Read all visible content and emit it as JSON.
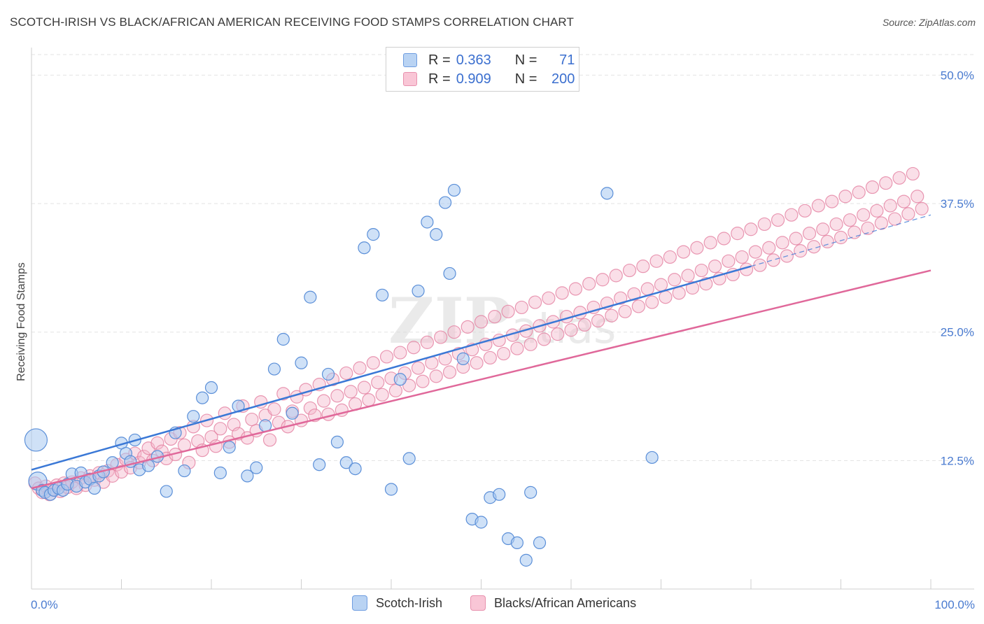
{
  "title": "SCOTCH-IRISH VS BLACK/AFRICAN AMERICAN RECEIVING FOOD STAMPS CORRELATION CHART",
  "source": "Source: ZipAtlas.com",
  "watermark": "ZIPatlas",
  "legend": {
    "r_label": "R =",
    "n_label": "N =",
    "series1": {
      "r": "0.363",
      "n": "71"
    },
    "series2": {
      "r": "0.909",
      "n": "200"
    }
  },
  "colors": {
    "blue_fill": "#a8c8f0",
    "blue_stroke": "#5b8fd8",
    "blue_line": "#3a78d6",
    "pink_fill": "#f5b8cc",
    "pink_stroke": "#e37fa0",
    "pink_line": "#e0689a"
  },
  "chart_data": {
    "type": "scatter",
    "title": "SCOTCH-IRISH VS BLACK/AFRICAN AMERICAN RECEIVING FOOD STAMPS CORRELATION CHART",
    "xlabel": "",
    "ylabel": "Receiving Food Stamps",
    "xlim": [
      0,
      100
    ],
    "ylim": [
      0,
      52
    ],
    "x_tick_labels": [
      "0.0%",
      "100.0%"
    ],
    "y_ticks": [
      12.5,
      25.0,
      37.5,
      50.0
    ],
    "y_tick_labels": [
      "12.5%",
      "25.0%",
      "37.5%",
      "50.0%"
    ],
    "grid": true,
    "legend_position": "bottom",
    "series": [
      {
        "name": "Scotch-Irish",
        "r": 0.363,
        "n": 71,
        "trend": {
          "x0": 0,
          "y0": 11.6,
          "x1": 80,
          "y1": 31.4,
          "dash_to_x": 100,
          "dash_to_y": 36.4
        },
        "points": [
          [
            0.5,
            14.5
          ],
          [
            0.7,
            10.5
          ],
          [
            1.2,
            9.6
          ],
          [
            1.5,
            9.4
          ],
          [
            2.1,
            9.2
          ],
          [
            2.5,
            9.6
          ],
          [
            3,
            9.8
          ],
          [
            3.5,
            9.6
          ],
          [
            4,
            10.2
          ],
          [
            4.5,
            11.2
          ],
          [
            5,
            10.0
          ],
          [
            5.5,
            11.3
          ],
          [
            6,
            10.4
          ],
          [
            6.5,
            10.7
          ],
          [
            7,
            9.8
          ],
          [
            7.5,
            11.0
          ],
          [
            8,
            11.4
          ],
          [
            9,
            12.3
          ],
          [
            10,
            14.2
          ],
          [
            10.5,
            13.2
          ],
          [
            11,
            12.4
          ],
          [
            11.5,
            14.5
          ],
          [
            12,
            11.6
          ],
          [
            13,
            12.0
          ],
          [
            14,
            12.9
          ],
          [
            15,
            9.5
          ],
          [
            16,
            15.2
          ],
          [
            17,
            11.5
          ],
          [
            18,
            16.8
          ],
          [
            19,
            18.6
          ],
          [
            20,
            19.6
          ],
          [
            21,
            11.3
          ],
          [
            22,
            13.8
          ],
          [
            23,
            17.8
          ],
          [
            24,
            11.0
          ],
          [
            25,
            11.8
          ],
          [
            26,
            15.9
          ],
          [
            27,
            21.4
          ],
          [
            28,
            24.3
          ],
          [
            29,
            17.1
          ],
          [
            30,
            22.0
          ],
          [
            31,
            28.4
          ],
          [
            32,
            12.1
          ],
          [
            33,
            20.9
          ],
          [
            34,
            14.3
          ],
          [
            35,
            12.3
          ],
          [
            36,
            11.7
          ],
          [
            37,
            33.2
          ],
          [
            38,
            34.5
          ],
          [
            39,
            28.6
          ],
          [
            40,
            9.7
          ],
          [
            41,
            20.4
          ],
          [
            42,
            12.7
          ],
          [
            43,
            29.0
          ],
          [
            44,
            35.7
          ],
          [
            45,
            34.5
          ],
          [
            46,
            37.6
          ],
          [
            46.5,
            30.7
          ],
          [
            47,
            38.8
          ],
          [
            48,
            22.4
          ],
          [
            49,
            6.8
          ],
          [
            50,
            6.5
          ],
          [
            51,
            8.9
          ],
          [
            52,
            9.2
          ],
          [
            53,
            4.9
          ],
          [
            54,
            4.5
          ],
          [
            55,
            2.8
          ],
          [
            55.5,
            9.4
          ],
          [
            56.5,
            4.5
          ],
          [
            64,
            38.5
          ],
          [
            69,
            12.8
          ]
        ]
      },
      {
        "name": "Blacks/African Americans",
        "r": 0.909,
        "n": 200,
        "trend": {
          "x0": 0,
          "y0": 9.8,
          "x1": 100,
          "y1": 31.0
        },
        "points": [
          [
            0.4,
            10.3
          ],
          [
            0.8,
            9.8
          ],
          [
            1.2,
            9.4
          ],
          [
            1.6,
            10.0
          ],
          [
            2,
            9.2
          ],
          [
            2.4,
            9.7
          ],
          [
            2.8,
            10.1
          ],
          [
            3.2,
            9.5
          ],
          [
            3.6,
            10.3
          ],
          [
            4,
            9.9
          ],
          [
            4.5,
            10.4
          ],
          [
            5,
            9.8
          ],
          [
            5.5,
            10.8
          ],
          [
            6,
            10.1
          ],
          [
            6.5,
            11.0
          ],
          [
            7,
            10.6
          ],
          [
            7.5,
            11.3
          ],
          [
            8,
            10.4
          ],
          [
            8.5,
            11.5
          ],
          [
            9,
            11.0
          ],
          [
            9.5,
            12.1
          ],
          [
            10,
            11.4
          ],
          [
            10.5,
            12.6
          ],
          [
            11,
            11.8
          ],
          [
            11.5,
            13.2
          ],
          [
            12,
            12.3
          ],
          [
            12.5,
            12.9
          ],
          [
            13,
            13.7
          ],
          [
            13.5,
            12.5
          ],
          [
            14,
            14.2
          ],
          [
            14.5,
            13.4
          ],
          [
            15,
            12.7
          ],
          [
            15.5,
            14.6
          ],
          [
            16,
            13.1
          ],
          [
            16.5,
            15.2
          ],
          [
            17,
            14.0
          ],
          [
            17.5,
            12.3
          ],
          [
            18,
            15.8
          ],
          [
            18.5,
            14.4
          ],
          [
            19,
            13.5
          ],
          [
            19.5,
            16.4
          ],
          [
            20,
            14.8
          ],
          [
            20.5,
            13.9
          ],
          [
            21,
            15.6
          ],
          [
            21.5,
            17.1
          ],
          [
            22,
            14.3
          ],
          [
            22.5,
            16.0
          ],
          [
            23,
            15.1
          ],
          [
            23.5,
            17.8
          ],
          [
            24,
            14.7
          ],
          [
            24.5,
            16.5
          ],
          [
            25,
            15.4
          ],
          [
            25.5,
            18.2
          ],
          [
            26,
            16.9
          ],
          [
            26.5,
            14.5
          ],
          [
            27,
            17.5
          ],
          [
            27.5,
            16.2
          ],
          [
            28,
            19.0
          ],
          [
            28.5,
            15.8
          ],
          [
            29,
            17.3
          ],
          [
            29.5,
            18.7
          ],
          [
            30,
            16.4
          ],
          [
            30.5,
            19.4
          ],
          [
            31,
            17.6
          ],
          [
            31.5,
            16.9
          ],
          [
            32,
            19.9
          ],
          [
            32.5,
            18.3
          ],
          [
            33,
            17.0
          ],
          [
            33.5,
            20.4
          ],
          [
            34,
            18.8
          ],
          [
            34.5,
            17.4
          ],
          [
            35,
            21.0
          ],
          [
            35.5,
            19.2
          ],
          [
            36,
            18.0
          ],
          [
            36.5,
            21.5
          ],
          [
            37,
            19.6
          ],
          [
            37.5,
            18.4
          ],
          [
            38,
            22.0
          ],
          [
            38.5,
            20.1
          ],
          [
            39,
            18.9
          ],
          [
            39.5,
            22.6
          ],
          [
            40,
            20.5
          ],
          [
            40.5,
            19.3
          ],
          [
            41,
            23.0
          ],
          [
            41.5,
            21.0
          ],
          [
            42,
            19.8
          ],
          [
            42.5,
            23.5
          ],
          [
            43,
            21.5
          ],
          [
            43.5,
            20.2
          ],
          [
            44,
            24.0
          ],
          [
            44.5,
            22.0
          ],
          [
            45,
            20.7
          ],
          [
            45.5,
            24.5
          ],
          [
            46,
            22.4
          ],
          [
            46.5,
            21.1
          ],
          [
            47,
            25.0
          ],
          [
            47.5,
            22.9
          ],
          [
            48,
            21.6
          ],
          [
            48.5,
            25.5
          ],
          [
            49,
            23.3
          ],
          [
            49.5,
            22.0
          ],
          [
            50,
            26.0
          ],
          [
            50.5,
            23.8
          ],
          [
            51,
            22.5
          ],
          [
            51.5,
            26.5
          ],
          [
            52,
            24.2
          ],
          [
            52.5,
            22.9
          ],
          [
            53,
            27.0
          ],
          [
            53.5,
            24.7
          ],
          [
            54,
            23.4
          ],
          [
            54.5,
            27.4
          ],
          [
            55,
            25.1
          ],
          [
            55.5,
            23.8
          ],
          [
            56,
            27.9
          ],
          [
            56.5,
            25.6
          ],
          [
            57,
            24.3
          ],
          [
            57.5,
            28.3
          ],
          [
            58,
            26.0
          ],
          [
            58.5,
            24.8
          ],
          [
            59,
            28.8
          ],
          [
            59.5,
            26.5
          ],
          [
            60,
            25.2
          ],
          [
            60.5,
            29.2
          ],
          [
            61,
            26.9
          ],
          [
            61.5,
            25.7
          ],
          [
            62,
            29.7
          ],
          [
            62.5,
            27.4
          ],
          [
            63,
            26.1
          ],
          [
            63.5,
            30.1
          ],
          [
            64,
            27.8
          ],
          [
            64.5,
            26.6
          ],
          [
            65,
            30.5
          ],
          [
            65.5,
            28.3
          ],
          [
            66,
            27.0
          ],
          [
            66.5,
            31.0
          ],
          [
            67,
            28.7
          ],
          [
            67.5,
            27.5
          ],
          [
            68,
            31.4
          ],
          [
            68.5,
            29.2
          ],
          [
            69,
            27.9
          ],
          [
            69.5,
            31.9
          ],
          [
            70,
            29.6
          ],
          [
            70.5,
            28.4
          ],
          [
            71,
            32.3
          ],
          [
            71.5,
            30.1
          ],
          [
            72,
            28.8
          ],
          [
            72.5,
            32.8
          ],
          [
            73,
            30.5
          ],
          [
            73.5,
            29.3
          ],
          [
            74,
            33.2
          ],
          [
            74.5,
            31.0
          ],
          [
            75,
            29.7
          ],
          [
            75.5,
            33.7
          ],
          [
            76,
            31.4
          ],
          [
            76.5,
            30.2
          ],
          [
            77,
            34.1
          ],
          [
            77.5,
            31.9
          ],
          [
            78,
            30.6
          ],
          [
            78.5,
            34.6
          ],
          [
            79,
            32.3
          ],
          [
            79.5,
            31.1
          ],
          [
            80,
            35.0
          ],
          [
            80.5,
            32.8
          ],
          [
            81,
            31.5
          ],
          [
            81.5,
            35.5
          ],
          [
            82,
            33.2
          ],
          [
            82.5,
            32.0
          ],
          [
            83,
            35.9
          ],
          [
            83.5,
            33.7
          ],
          [
            84,
            32.4
          ],
          [
            84.5,
            36.4
          ],
          [
            85,
            34.1
          ],
          [
            85.5,
            32.9
          ],
          [
            86,
            36.8
          ],
          [
            86.5,
            34.6
          ],
          [
            87,
            33.3
          ],
          [
            87.5,
            37.3
          ],
          [
            88,
            35.0
          ],
          [
            88.5,
            33.8
          ],
          [
            89,
            37.7
          ],
          [
            89.5,
            35.5
          ],
          [
            90,
            34.2
          ],
          [
            90.5,
            38.2
          ],
          [
            91,
            35.9
          ],
          [
            91.5,
            34.7
          ],
          [
            92,
            38.6
          ],
          [
            92.5,
            36.4
          ],
          [
            93,
            35.1
          ],
          [
            93.5,
            39.1
          ],
          [
            94,
            36.8
          ],
          [
            94.5,
            35.6
          ],
          [
            95,
            39.5
          ],
          [
            95.5,
            37.3
          ],
          [
            96,
            36.0
          ],
          [
            96.5,
            40.0
          ],
          [
            97,
            37.7
          ],
          [
            97.5,
            36.5
          ],
          [
            98,
            40.4
          ],
          [
            98.5,
            38.2
          ],
          [
            99,
            37.0
          ]
        ]
      }
    ]
  },
  "bottom_legend": {
    "item1": "Scotch-Irish",
    "item2": "Blacks/African Americans"
  }
}
